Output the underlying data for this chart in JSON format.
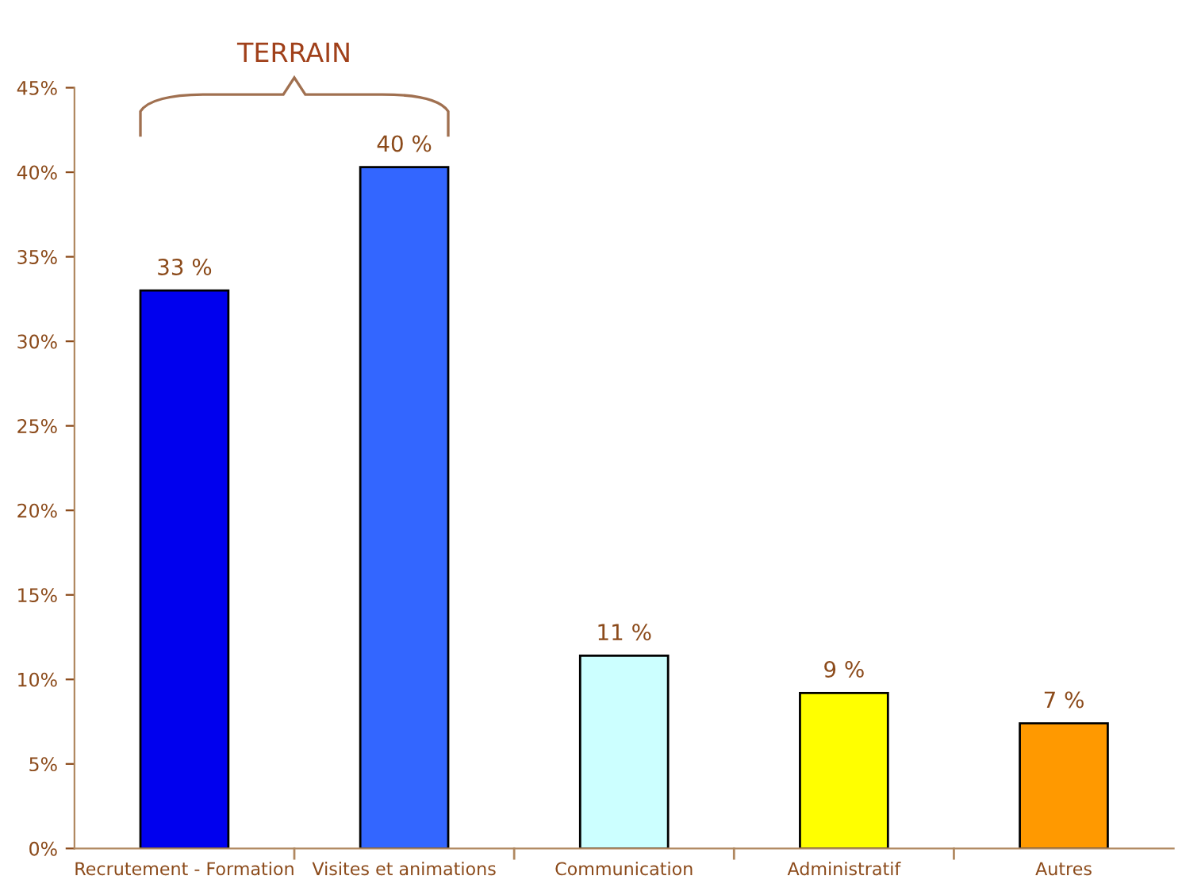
{
  "chart_data": {
    "type": "bar",
    "categories": [
      "Recrutement - Formation",
      "Visites et animations",
      "Communication",
      "Administratif",
      "Autres"
    ],
    "values": [
      33,
      40.3,
      11.4,
      9.2,
      7.4
    ],
    "colors": [
      "#0000ee",
      "#3366ff",
      "#ccffff",
      "#ffff00",
      "#ff9900"
    ],
    "value_labels": [
      "33 %",
      "40 %",
      "11 %",
      "9 %",
      "7 %"
    ],
    "annotations": [
      "TERRAIN"
    ],
    "ylim": [
      0,
      45
    ],
    "yticks": [
      {
        "value": 0,
        "label": "0%"
      },
      {
        "value": 5,
        "label": "5%"
      },
      {
        "value": 10,
        "label": "10%"
      },
      {
        "value": 15,
        "label": "15%"
      },
      {
        "value": 20,
        "label": "20%"
      },
      {
        "value": 25,
        "label": "25%"
      },
      {
        "value": 30,
        "label": "30%"
      },
      {
        "value": 35,
        "label": "35%"
      },
      {
        "value": 40,
        "label": "40%"
      },
      {
        "value": 45,
        "label": "45%"
      }
    ],
    "grid": false
  }
}
